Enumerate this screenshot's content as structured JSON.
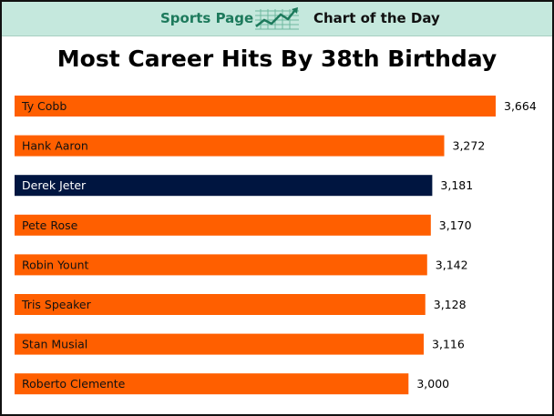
{
  "header": {
    "left_text": "Sports Page",
    "right_text": "Chart of the Day",
    "icon": "line-chart-icon"
  },
  "colors": {
    "banner_bg": "#c5e8dd",
    "bar_default": "#ff5f00",
    "bar_highlight": "#001540",
    "label_on_default": "#111111",
    "label_on_highlight": "#ffffff"
  },
  "chart_data": {
    "type": "bar",
    "orientation": "horizontal",
    "title": "Most Career Hits By 38th Birthday",
    "categories": [
      "Ty Cobb",
      "Hank Aaron",
      "Derek Jeter",
      "Pete Rose",
      "Robin Yount",
      "Tris Speaker",
      "Stan Musial",
      "Roberto Clemente"
    ],
    "values": [
      3664,
      3272,
      3181,
      3170,
      3142,
      3128,
      3116,
      3000
    ],
    "value_labels": [
      "3,664",
      "3,272",
      "3,181",
      "3,170",
      "3,142",
      "3,128",
      "3,116",
      "3,000"
    ],
    "highlight": "Derek Jeter",
    "xlabel": "",
    "ylabel": "",
    "grid": false,
    "legend": "none"
  }
}
